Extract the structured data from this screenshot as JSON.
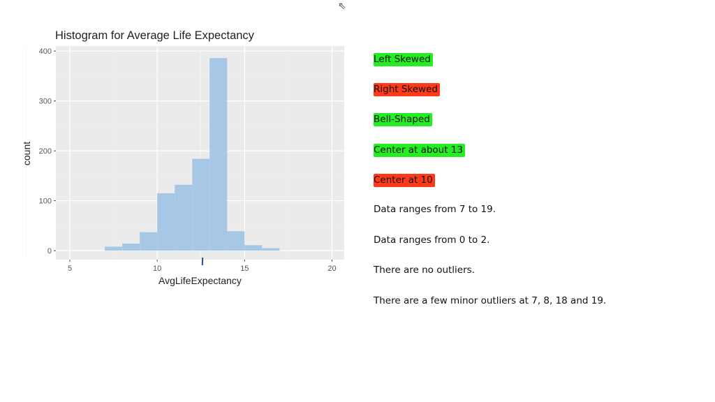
{
  "chart_data": {
    "type": "bar",
    "title": "Histogram for Average Life Expectancy",
    "xlabel": "AvgLifeExpectancy",
    "ylabel": "count",
    "bin_edges": [
      7,
      8,
      9,
      10,
      11,
      12,
      13,
      14,
      15,
      16,
      17
    ],
    "values": [
      8,
      14,
      37,
      115,
      132,
      184,
      386,
      39,
      11,
      5
    ],
    "xlim": [
      4.2,
      20.7
    ],
    "ylim": [
      -18,
      410
    ],
    "xticks": [
      "5",
      "10",
      "15",
      "20"
    ],
    "yticks": [
      "0",
      "100",
      "200",
      "300",
      "400"
    ],
    "bar_color": "#a7c7e7",
    "panel_color": "#ebebeb",
    "grid": true,
    "annotation_mark_x": 12.6
  },
  "options": [
    {
      "text": "Left Skewed",
      "highlight": "#22ee22"
    },
    {
      "text": "Right Skewed",
      "highlight": "#ff3a1a"
    },
    {
      "text": "Bell-Shaped",
      "highlight": "#22ee22"
    },
    {
      "text": "Center at about 13",
      "highlight": "#22ee22"
    },
    {
      "text": "Center at 10",
      "highlight": "#ff3a1a"
    },
    {
      "text": "Data ranges from 7 to 19.",
      "highlight": ""
    },
    {
      "text": "Data ranges from 0 to 2.",
      "highlight": ""
    },
    {
      "text": "There are no outliers.",
      "highlight": ""
    },
    {
      "text": "There are a few minor outliers at 7, 8, 18 and 19.",
      "highlight": ""
    }
  ]
}
